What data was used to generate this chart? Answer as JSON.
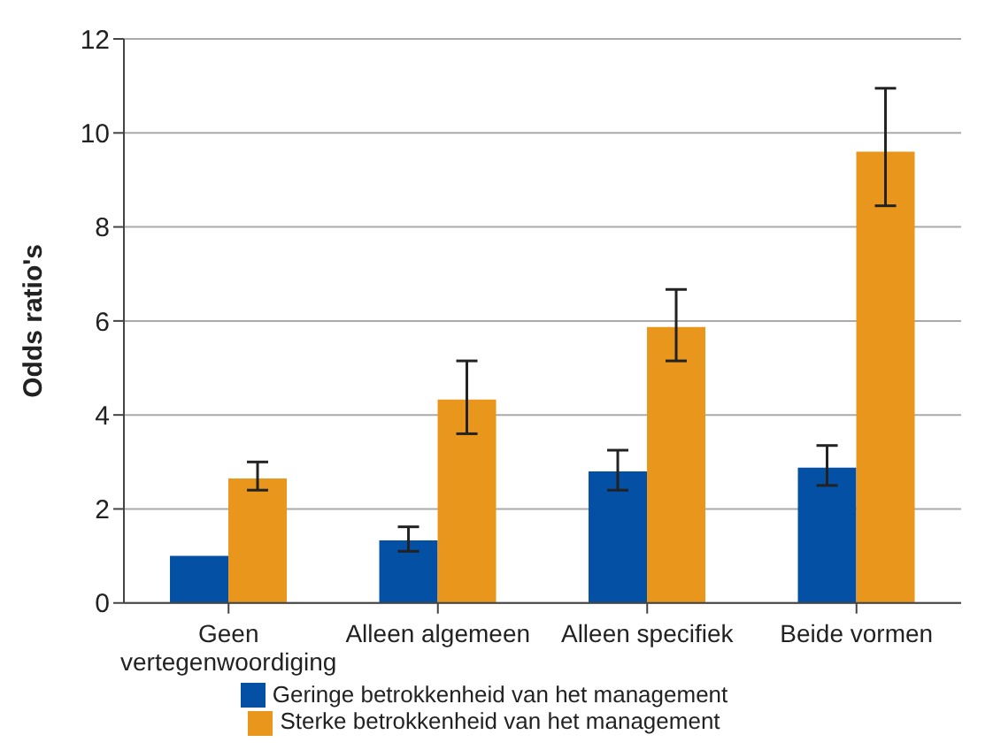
{
  "chart_data": {
    "type": "bar",
    "ylabel": "Odds ratio's",
    "categories": [
      "Geen vertegenwoordiging",
      "Alleen algemeen",
      "Alleen specifiek",
      "Beide vormen"
    ],
    "series": [
      {
        "name": "Geringe betrokkenheid van het management",
        "color": "#0450a4",
        "values": [
          1.0,
          1.33,
          2.8,
          2.88
        ],
        "errors": [
          null,
          [
            1.1,
            1.62
          ],
          [
            2.4,
            3.25
          ],
          [
            2.5,
            3.35
          ]
        ]
      },
      {
        "name": "Sterke betrokkenheid van het management",
        "color": "#e8961c",
        "values": [
          2.65,
          4.33,
          5.87,
          9.6
        ],
        "errors": [
          [
            2.4,
            3.0
          ],
          [
            3.6,
            5.15
          ],
          [
            5.15,
            6.67
          ],
          [
            8.45,
            10.95
          ]
        ]
      }
    ],
    "ylim": [
      0,
      12
    ],
    "yticks": [
      0,
      2,
      4,
      6,
      8,
      10,
      12
    ],
    "grid": "y",
    "legend": "bottom"
  }
}
